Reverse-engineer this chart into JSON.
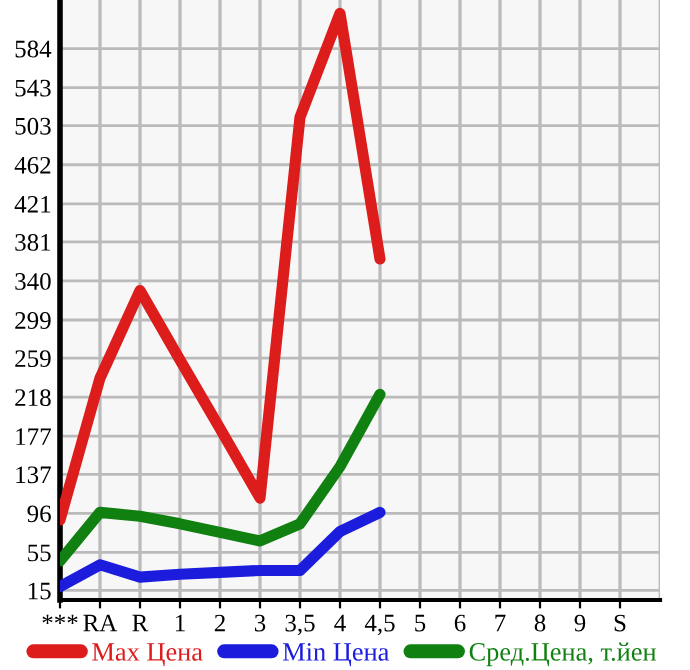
{
  "chart_data": {
    "type": "line",
    "categories": [
      "***",
      "RA",
      "R",
      "1",
      "2",
      "3",
      "3,5",
      "4",
      "4,5",
      "5",
      "6",
      "7",
      "8",
      "9",
      "S"
    ],
    "series": [
      {
        "name": "Max Цена",
        "color": "#dd1c1c",
        "values": [
          89,
          238,
          330,
          257,
          185,
          112,
          512,
          621,
          363,
          null,
          null,
          null,
          null,
          null,
          null
        ]
      },
      {
        "name": "Min Цена",
        "color": "#1c1cdd",
        "values": [
          19,
          42,
          29,
          32,
          34,
          36,
          36,
          77,
          97,
          null,
          null,
          null,
          null,
          null,
          null
        ]
      },
      {
        "name": "Сред.Цена, т.йен",
        "color": "#108010",
        "values": [
          46,
          97,
          93,
          85,
          76,
          67,
          85,
          145,
          221,
          null,
          null,
          null,
          null,
          null,
          null
        ]
      }
    ],
    "ylim": [
      5,
      635
    ],
    "yticks": [
      15,
      55,
      96,
      137,
      177,
      218,
      259,
      299,
      340,
      381,
      421,
      462,
      503,
      543,
      584
    ],
    "grid": true,
    "legend": "bottom",
    "marker": "none",
    "line_style": "solid"
  }
}
